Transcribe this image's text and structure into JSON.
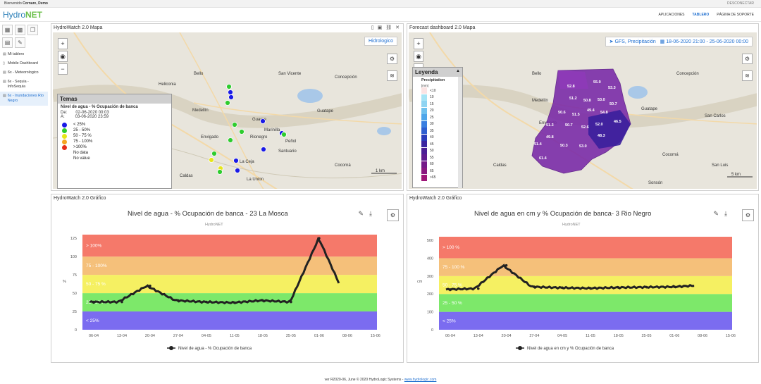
{
  "topbar": {
    "welcome": "Bienvenido ",
    "user": "Cornare, Demo",
    "logout": "DESCONECTAR"
  },
  "brand": {
    "part1": "Hydro",
    "part2": "NET"
  },
  "nav": {
    "items": [
      "APLICACIONES",
      "TABLERO",
      "PÁGINA DE SOPORTE"
    ],
    "active": "TABLERO"
  },
  "sidebar": {
    "tools": [
      "grid-icon",
      "qr-icon",
      "copy-icon",
      "dashboard-icon",
      "pencil-icon"
    ],
    "items": [
      {
        "label": "Mi tablero",
        "icon": "dashboard-icon",
        "active": false
      },
      {
        "label": "Mobile Dashboard",
        "icon": "mobile-icon",
        "active": false
      },
      {
        "label": "6x - Meteorologico",
        "icon": "dashboard-icon",
        "active": false
      },
      {
        "label": "6x - Sequia - InfoSequia",
        "icon": "dashboard-icon",
        "active": false
      },
      {
        "label": "6x - Inundaciones Rio Negro",
        "icon": "dashboard-icon",
        "active": true
      }
    ]
  },
  "map1": {
    "title": "HydroWatch 2.0 Mapa",
    "tag": "Hidrologico",
    "cities": [
      "Bello",
      "Medellín",
      "Envigado",
      "Guarne",
      "Rionegro",
      "Marinilla",
      "Guatape",
      "Peñol",
      "Santuario",
      "Caldas",
      "La Ceja",
      "La Union",
      "Cocorná",
      "San Vicente",
      "Concepción",
      "Heliconia"
    ],
    "legend": {
      "title": "Temas",
      "subtitle": "Nivel de agua - % Ocupación de banca",
      "from_label": "De:",
      "from_value": "02-06-2020 00:03",
      "to_label": "A:",
      "to_value": "03-06-2020 23:59",
      "entries": [
        {
          "label": "< 25%",
          "color": "#1a1ae6"
        },
        {
          "label": "25 - 50%",
          "color": "#2ecc2e"
        },
        {
          "label": "50 - 75 %",
          "color": "#e6e61a"
        },
        {
          "label": "75 - 100%",
          "color": "#f5a623"
        },
        {
          "label": ">100%",
          "color": "#e62e1a"
        },
        {
          "label": "No data",
          "color": ""
        },
        {
          "label": "No value",
          "color": ""
        }
      ]
    },
    "scale": "1 km"
  },
  "map2": {
    "title": "Forecast dashboard 2.0 Mapa",
    "tag_source": "GFS, Precipitación",
    "tag_period": "18-06-2020 21:00 - 25-06-2020 00:00",
    "cities": [
      "Bello",
      "Medellín",
      "Envigado",
      "Caldas",
      "Guatape",
      "San Luis",
      "San Carlos",
      "Cocorná",
      "Sonsón",
      "Concepción"
    ],
    "legend": {
      "title": "Leyenda",
      "subtitle": "Precipitation",
      "unit": "[mm]",
      "entries": [
        "<10",
        "10",
        "15",
        "20",
        "25",
        "30",
        "35",
        "40",
        "45",
        "50",
        "55",
        "60",
        "65",
        ">65"
      ]
    },
    "cells": [
      "52.8",
      "55.9",
      "53.3",
      "51.2",
      "50.8",
      "53.0",
      "50.7",
      "50.6",
      "51.5",
      "49.4",
      "54.8",
      "46.5",
      "50.7",
      "52.6",
      "52.0",
      "51.3",
      "49.8",
      "48.3",
      "51.4",
      "50.3",
      "53.0",
      "61.4"
    ],
    "scale": "5 km"
  },
  "chart1": {
    "panel_title": "HydroWatch 2.0 Gráfico",
    "credit": "HydroNET",
    "bands": [
      "> 100%",
      "75 - 100%",
      "50 - 75 %",
      "25 - 50 %",
      "< 25%"
    ],
    "legend_label": "Nivel de agua - % Ocupación de banca"
  },
  "chart2": {
    "panel_title": "HydroWatch 2.0 Gráfico",
    "credit": "HydroNET",
    "bands": [
      "> 100 %",
      "75 - 100 %",
      "50 - 75 %",
      "25 - 50 %",
      "< 25%"
    ],
    "legend_label": "Nivel de agua en cm y % Ocupación de banca"
  },
  "chart_data": [
    {
      "type": "line",
      "title": "Nivel de agua - % Ocupación de banca - 23 La Mosca",
      "xlabel": "",
      "ylabel": "%",
      "x": [
        "06-04",
        "13-04",
        "20-04",
        "27-04",
        "04-05",
        "11-05",
        "18-05",
        "25-05",
        "01-06",
        "08-06",
        "15-06"
      ],
      "ylim": [
        0,
        130
      ],
      "yticks": [
        0,
        25,
        50,
        75,
        100,
        125
      ],
      "thresholds": [
        25,
        50,
        75,
        100
      ],
      "series": [
        {
          "name": "Nivel de agua - % Ocupación de banca",
          "values": [
            38,
            38,
            60,
            40,
            38,
            37,
            40,
            38,
            125,
            38,
            38
          ]
        }
      ]
    },
    {
      "type": "line",
      "title": "Nivel de agua en cm y % Ocupación de banca- 3 Rio Negro",
      "xlabel": "",
      "ylabel": "cm",
      "x": [
        "06-04",
        "13-04",
        "20-04",
        "27-04",
        "04-05",
        "11-05",
        "18-05",
        "25-05",
        "01-06",
        "08-06",
        "15-06"
      ],
      "ylim": [
        0,
        520
      ],
      "yticks": [
        0,
        100,
        200,
        300,
        400,
        500
      ],
      "thresholds": [
        100,
        200,
        300,
        400
      ],
      "series": [
        {
          "name": "Nivel de agua en cm y % Ocupación de banca",
          "values": [
            225,
            230,
            360,
            240,
            235,
            232,
            236,
            238,
            240,
            250,
            235
          ]
        }
      ]
    }
  ],
  "footer": {
    "version": "ver R2020-06, June",
    "copyright": " © 2020 HydroLogic Systems - ",
    "link": "www.hydrologic.com"
  }
}
